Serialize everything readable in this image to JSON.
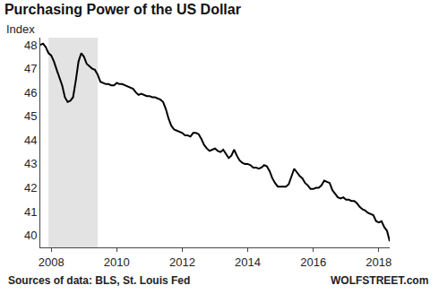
{
  "chart_data": {
    "type": "line",
    "title": "Purchasing Power of the US Dollar",
    "ylabel": "Index",
    "source": "Sources of data: BLS, St. Louis Fed",
    "credit": "WOLFSTREET.com",
    "color": "#000000",
    "grid": false,
    "ylim": [
      39.5,
      48.3
    ],
    "yticks": [
      40,
      41,
      42,
      43,
      44,
      45,
      46,
      47,
      48
    ],
    "shaded": {
      "from": 3,
      "to": 21,
      "color": "#e3e3e3"
    },
    "categories": [
      null,
      null,
      null,
      null,
      "2008",
      null,
      null,
      null,
      null,
      null,
      null,
      null,
      null,
      null,
      null,
      null,
      null,
      null,
      null,
      null,
      null,
      null,
      null,
      null,
      null,
      null,
      null,
      null,
      "2010",
      null,
      null,
      null,
      null,
      null,
      null,
      null,
      null,
      null,
      null,
      null,
      null,
      null,
      null,
      null,
      null,
      null,
      null,
      null,
      null,
      null,
      null,
      null,
      "2012",
      null,
      null,
      null,
      null,
      null,
      null,
      null,
      null,
      null,
      null,
      null,
      null,
      null,
      null,
      null,
      null,
      null,
      null,
      null,
      null,
      null,
      null,
      null,
      "2014",
      null,
      null,
      null,
      null,
      null,
      null,
      null,
      null,
      null,
      null,
      null,
      null,
      null,
      null,
      null,
      null,
      null,
      null,
      null,
      null,
      null,
      null,
      null,
      "2016",
      null,
      null,
      null,
      null,
      null,
      null,
      null,
      null,
      null,
      null,
      null,
      null,
      null,
      null,
      null,
      null,
      null,
      null,
      null,
      null,
      null,
      null,
      null,
      "2018",
      null,
      null,
      null,
      null
    ],
    "values": [
      48.0,
      48.05,
      47.9,
      47.65,
      47.55,
      47.3,
      46.95,
      46.65,
      46.3,
      45.8,
      45.6,
      45.65,
      45.8,
      46.5,
      47.3,
      47.65,
      47.5,
      47.2,
      47.1,
      47.0,
      46.95,
      46.75,
      46.45,
      46.4,
      46.35,
      46.35,
      46.3,
      46.3,
      46.4,
      46.35,
      46.35,
      46.3,
      46.25,
      46.2,
      46.15,
      46.0,
      45.9,
      45.95,
      45.9,
      45.85,
      45.85,
      45.8,
      45.8,
      45.75,
      45.7,
      45.6,
      45.3,
      44.9,
      44.6,
      44.45,
      44.4,
      44.35,
      44.3,
      44.2,
      44.2,
      44.15,
      44.3,
      44.3,
      44.25,
      44.05,
      43.8,
      43.65,
      43.55,
      43.6,
      43.65,
      43.55,
      43.5,
      43.6,
      43.4,
      43.25,
      43.35,
      43.6,
      43.35,
      43.15,
      43.05,
      43.0,
      43.0,
      42.95,
      42.85,
      42.85,
      42.8,
      42.85,
      42.95,
      42.9,
      42.7,
      42.4,
      42.2,
      42.05,
      42.05,
      42.05,
      42.05,
      42.15,
      42.45,
      42.8,
      42.65,
      42.5,
      42.4,
      42.2,
      42.1,
      41.95,
      41.95,
      42.0,
      42.0,
      42.1,
      42.3,
      42.25,
      42.2,
      41.9,
      41.75,
      41.6,
      41.55,
      41.6,
      41.5,
      41.5,
      41.45,
      41.45,
      41.35,
      41.2,
      41.1,
      41.05,
      40.95,
      40.9,
      40.85,
      40.6,
      40.55,
      40.6,
      40.35,
      40.2,
      39.75
    ]
  }
}
